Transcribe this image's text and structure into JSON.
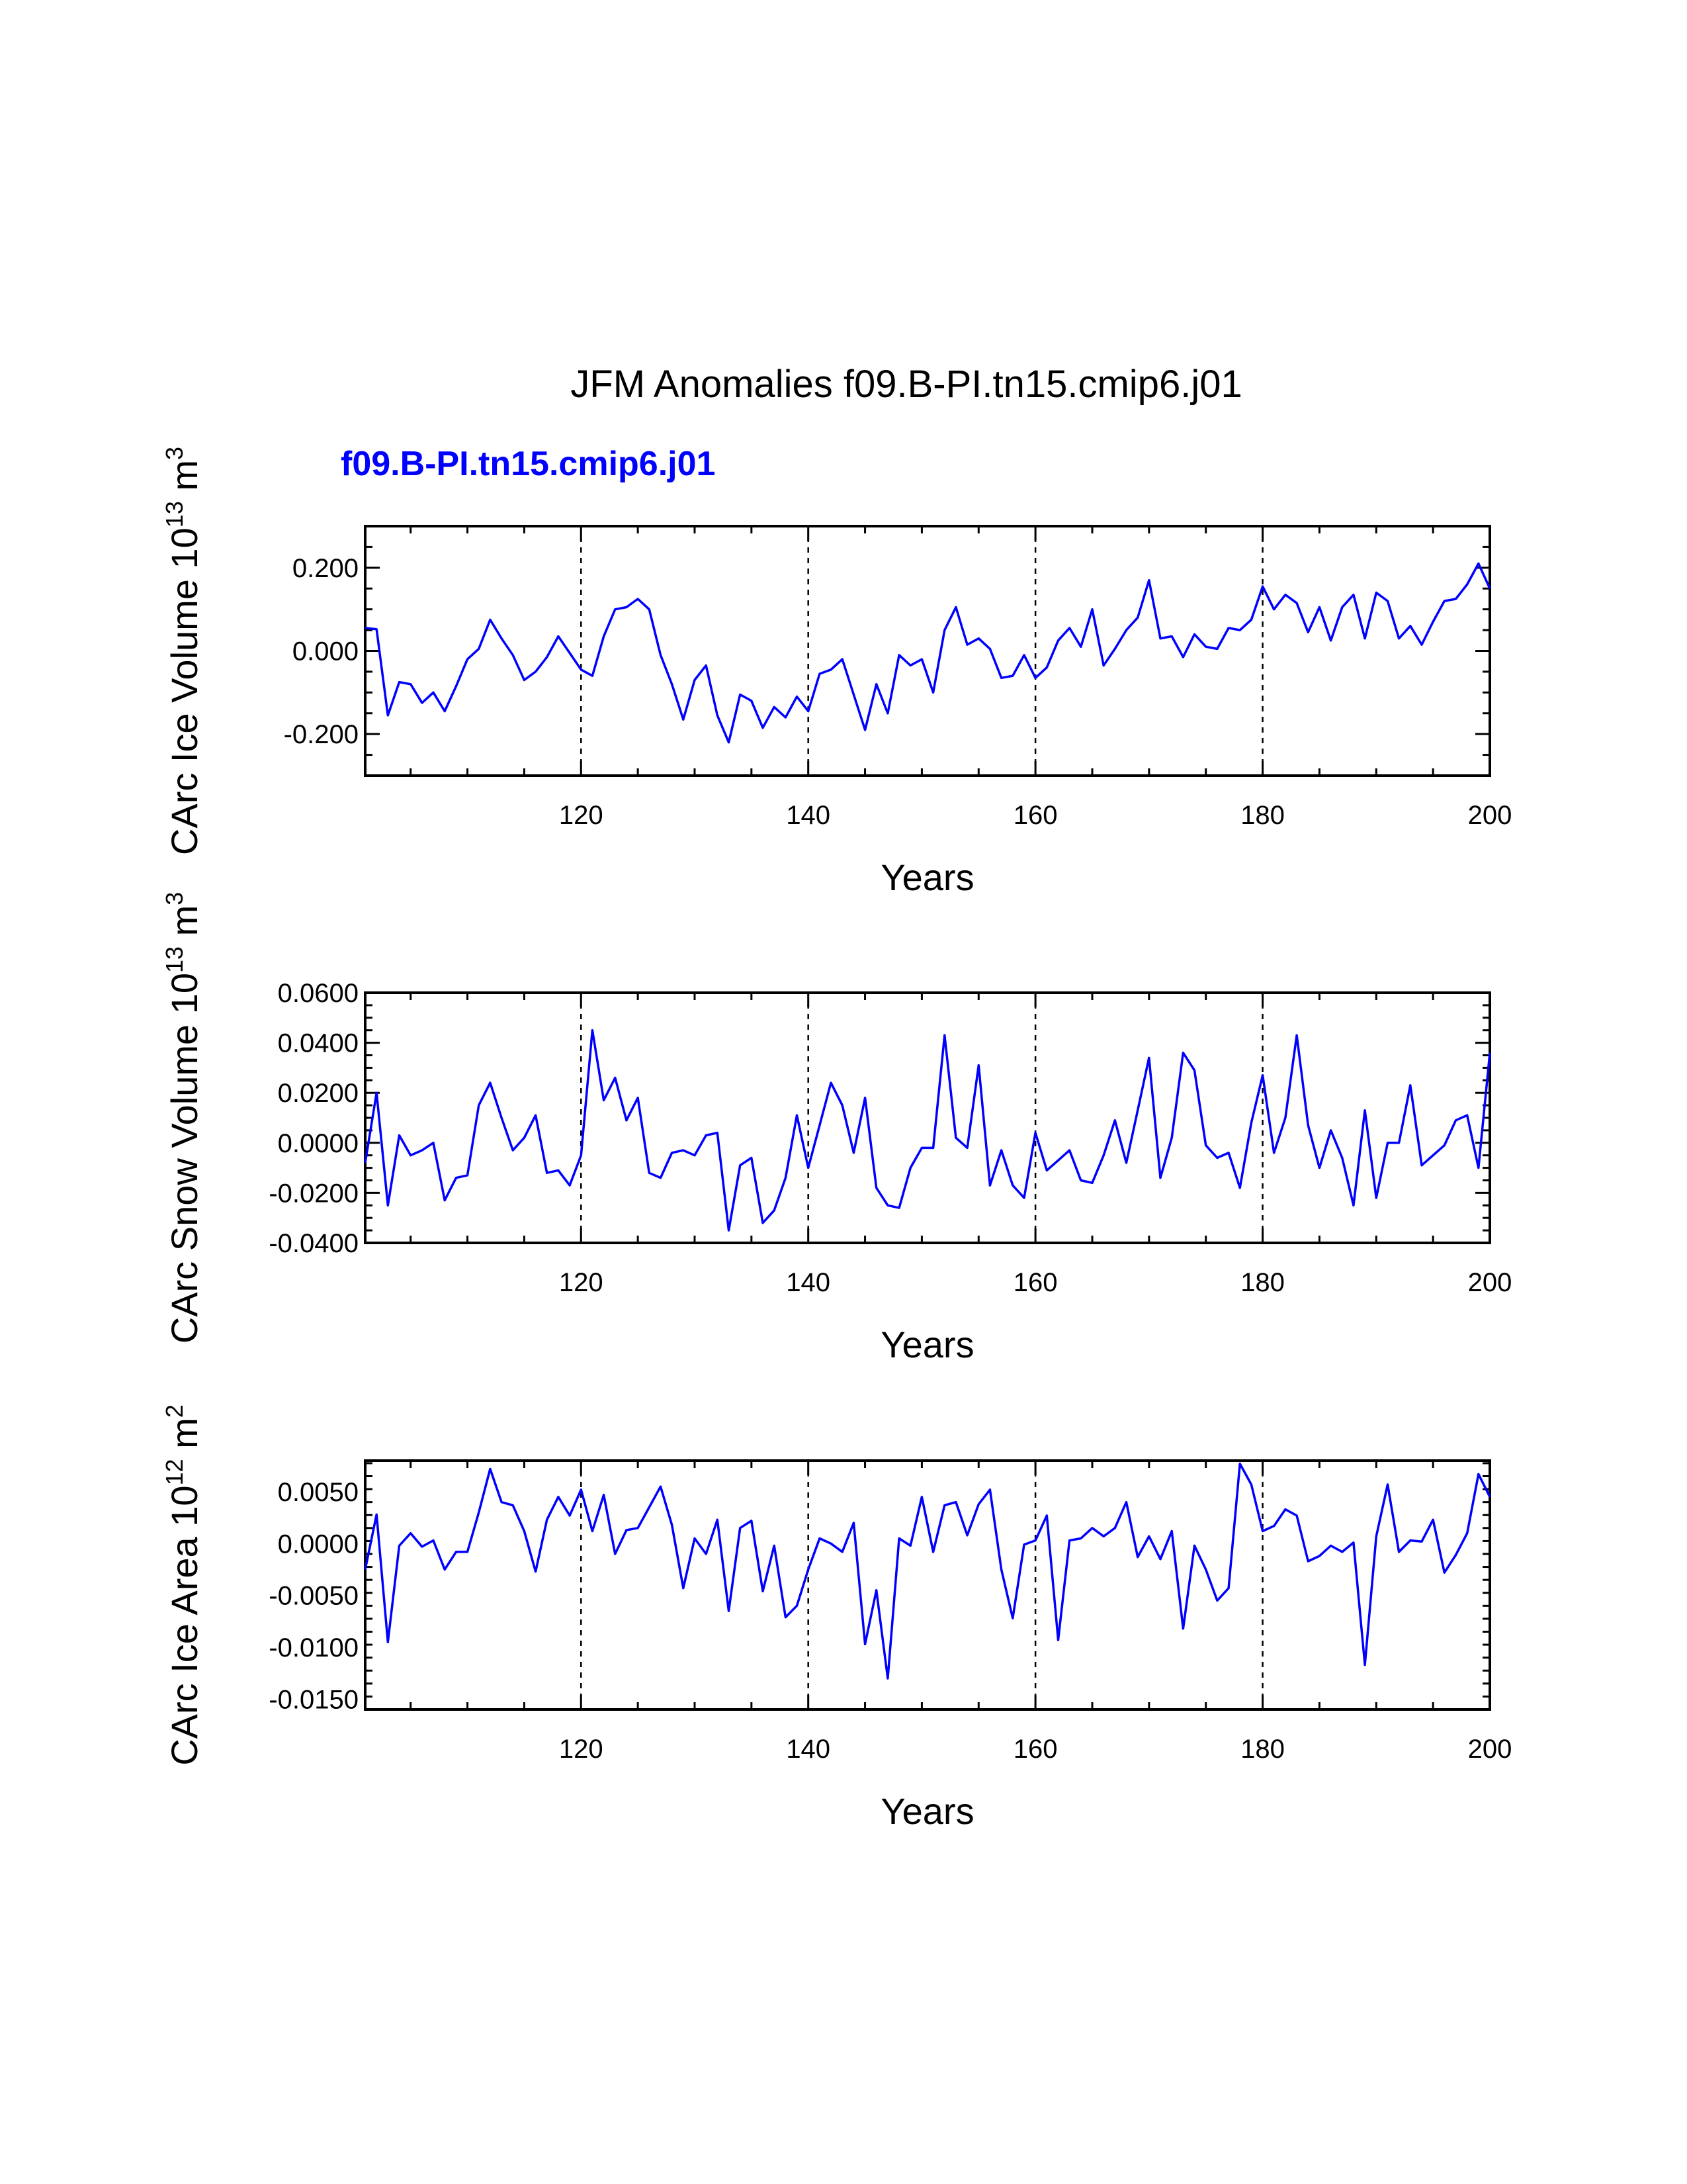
{
  "title": "JFM Anomalies f09.B-PI.tn15.cmip6.j01",
  "subtitle": "f09.B-PI.tn15.cmip6.j01",
  "line_color": "#0000ff",
  "chart_data": [
    {
      "type": "line",
      "ylabel": "CArc Ice Volume 10",
      "ylabel_exp": "13",
      "ylabel_unit": " m",
      "ylabel_unit_exp": "3",
      "xlabel": "Years",
      "xlim": [
        101,
        200
      ],
      "ylim": [
        -0.3,
        0.3
      ],
      "yticks": [
        -0.2,
        0.0,
        0.2
      ],
      "ytick_labels": [
        "-0.200",
        "0.000",
        "0.200"
      ],
      "xticks": [
        120,
        140,
        160,
        180,
        200
      ],
      "xtick_labels": [
        "120",
        "140",
        "160",
        "180",
        "200"
      ],
      "grid_x": [
        120,
        140,
        160,
        180
      ],
      "x_start": 101,
      "values": [
        0.055,
        0.052,
        -0.155,
        -0.075,
        -0.08,
        -0.125,
        -0.1,
        -0.145,
        -0.085,
        -0.02,
        0.005,
        0.075,
        0.03,
        -0.01,
        -0.07,
        -0.05,
        -0.015,
        0.035,
        -0.005,
        -0.045,
        -0.06,
        0.035,
        0.1,
        0.105,
        0.125,
        0.1,
        -0.01,
        -0.08,
        -0.165,
        -0.07,
        -0.035,
        -0.155,
        -0.22,
        -0.105,
        -0.12,
        -0.185,
        -0.135,
        -0.16,
        -0.11,
        -0.145,
        -0.055,
        -0.045,
        -0.02,
        -0.105,
        -0.19,
        -0.08,
        -0.15,
        -0.01,
        -0.035,
        -0.02,
        -0.1,
        0.05,
        0.105,
        0.015,
        0.03,
        0.005,
        -0.065,
        -0.06,
        -0.01,
        -0.065,
        -0.04,
        0.025,
        0.055,
        0.01,
        0.1,
        -0.035,
        0.005,
        0.05,
        0.08,
        0.17,
        0.03,
        0.035,
        -0.015,
        0.04,
        0.01,
        0.005,
        0.055,
        0.05,
        0.075,
        0.155,
        0.1,
        0.135,
        0.115,
        0.045,
        0.105,
        0.025,
        0.105,
        0.135,
        0.03,
        0.14,
        0.12,
        0.03,
        0.06,
        0.015,
        0.07,
        0.12,
        0.125,
        0.16,
        0.21,
        0.15
      ]
    },
    {
      "type": "line",
      "ylabel": "CArc Snow Volume 10",
      "ylabel_exp": "13",
      "ylabel_unit": " m",
      "ylabel_unit_exp": "3",
      "xlabel": "Years",
      "xlim": [
        101,
        200
      ],
      "ylim": [
        -0.04,
        0.06
      ],
      "yticks": [
        -0.04,
        -0.02,
        0.0,
        0.02,
        0.04,
        0.06
      ],
      "ytick_labels": [
        "-0.0400",
        "-0.0200",
        "0.0000",
        "0.0200",
        "0.0400",
        "0.0600"
      ],
      "xticks": [
        120,
        140,
        160,
        180,
        200
      ],
      "xtick_labels": [
        "120",
        "140",
        "160",
        "180",
        "200"
      ],
      "grid_x": [
        120,
        140,
        160,
        180
      ],
      "x_start": 101,
      "values": [
        -0.008,
        0.02,
        -0.025,
        0.003,
        -0.005,
        -0.003,
        0.0,
        -0.023,
        -0.014,
        -0.013,
        0.015,
        0.024,
        0.01,
        -0.003,
        0.002,
        0.011,
        -0.012,
        -0.011,
        -0.017,
        -0.005,
        0.045,
        0.017,
        0.026,
        0.009,
        0.018,
        -0.012,
        -0.014,
        -0.004,
        -0.003,
        -0.005,
        0.003,
        0.004,
        -0.035,
        -0.009,
        -0.006,
        -0.032,
        -0.027,
        -0.014,
        0.011,
        -0.01,
        0.007,
        0.024,
        0.015,
        -0.004,
        0.018,
        -0.018,
        -0.025,
        -0.026,
        -0.01,
        -0.002,
        -0.002,
        0.043,
        0.002,
        -0.002,
        0.031,
        -0.017,
        -0.003,
        -0.017,
        -0.022,
        0.004,
        -0.011,
        -0.007,
        -0.003,
        -0.015,
        -0.016,
        -0.005,
        0.009,
        -0.008,
        0.013,
        0.034,
        -0.014,
        0.002,
        0.036,
        0.029,
        -0.001,
        -0.006,
        -0.004,
        -0.018,
        0.008,
        0.027,
        -0.004,
        0.01,
        0.043,
        0.007,
        -0.01,
        0.005,
        -0.006,
        -0.025,
        0.013,
        -0.022,
        0.0,
        0.0,
        0.023,
        -0.009,
        -0.005,
        -0.001,
        0.009,
        0.011,
        -0.01,
        0.036
      ]
    },
    {
      "type": "line",
      "ylabel": "CArc Ice Area 10",
      "ylabel_exp": "12",
      "ylabel_unit": " m",
      "ylabel_unit_exp": "2",
      "xlabel": "Years",
      "xlim": [
        101,
        200
      ],
      "ylim": [
        -0.016,
        0.008
      ],
      "yticks": [
        -0.015,
        -0.01,
        -0.005,
        0.0,
        0.005
      ],
      "ytick_labels": [
        "-0.0150",
        "-0.0100",
        "-0.0050",
        "0.0000",
        "0.0050"
      ],
      "xticks": [
        120,
        140,
        160,
        180,
        200
      ],
      "xtick_labels": [
        "120",
        "140",
        "160",
        "180",
        "200"
      ],
      "grid_x": [
        120,
        140,
        160,
        180
      ],
      "x_start": 101,
      "values": [
        -0.0025,
        0.0028,
        -0.0095,
        -0.0002,
        0.001,
        -0.0003,
        0.0003,
        -0.0025,
        -0.0008,
        -0.0008,
        0.003,
        0.0072,
        0.004,
        0.0037,
        0.0012,
        -0.0027,
        0.0023,
        0.0045,
        0.0027,
        0.0052,
        0.0012,
        0.0047,
        -0.001,
        0.0013,
        0.0015,
        0.0035,
        0.0055,
        0.0018,
        -0.0043,
        0.0005,
        -0.001,
        0.0023,
        -0.0065,
        0.0015,
        0.0022,
        -0.0046,
        -0.0002,
        -0.0071,
        -0.006,
        -0.0025,
        0.0005,
        0.0,
        -0.0008,
        0.002,
        -0.0097,
        -0.0045,
        -0.013,
        0.0005,
        -0.0002,
        0.0045,
        -0.0008,
        0.0037,
        0.004,
        0.0008,
        0.0038,
        0.0052,
        -0.0025,
        -0.0072,
        -0.0001,
        0.0003,
        0.0027,
        -0.0093,
        0.0003,
        0.0005,
        0.0015,
        0.0007,
        0.0015,
        0.004,
        -0.0013,
        0.0007,
        -0.0015,
        0.0012,
        -0.0082,
        -0.0002,
        -0.0025,
        -0.0055,
        -0.0043,
        0.0077,
        0.0057,
        0.0012,
        0.0017,
        0.0033,
        0.0027,
        -0.0017,
        -0.0012,
        -0.0002,
        -0.0008,
        0.0001,
        -0.0117,
        0.0007,
        0.0057,
        -0.0008,
        0.0003,
        0.0002,
        0.0023,
        -0.0028,
        -0.0011,
        0.001,
        0.0067,
        0.0045
      ]
    }
  ]
}
